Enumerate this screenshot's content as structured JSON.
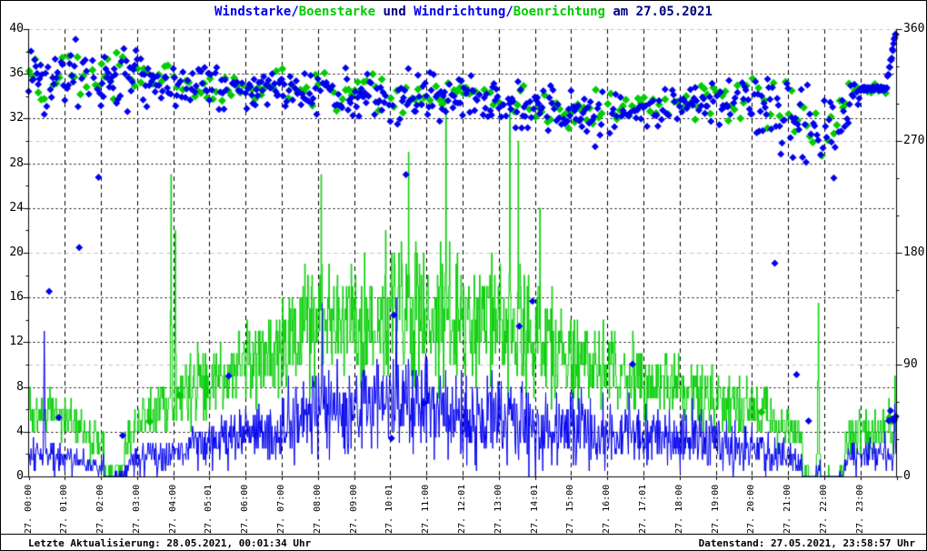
{
  "title": {
    "segments": [
      {
        "text": "Windstarke/",
        "color": "#0000ee"
      },
      {
        "text": "Boenstarke",
        "color": "#00cc00"
      },
      {
        "text": " und ",
        "color": "#000080"
      },
      {
        "text": "Windrichtung/",
        "color": "#0000ee"
      },
      {
        "text": "Boenrichtung",
        "color": "#00cc00"
      },
      {
        "text": " am 27.05.2021",
        "color": "#000080"
      }
    ]
  },
  "footer": {
    "left": "Letzte Aktualisierung: 28.05.2021, 00:01:34 Uhr",
    "right": "Datenstand: 27.05.2021, 23:58:57 Uhr"
  },
  "colors": {
    "wind_blue": "#0000ee",
    "gust_green": "#00cc00",
    "grid_gray": "#c0c0c0",
    "grid_black": "#000000",
    "axis_black": "#000000"
  },
  "axes": {
    "y_left": {
      "min": 0,
      "max": 40,
      "step": 4,
      "tick_labels": [
        "40",
        "36",
        "32",
        "28",
        "24",
        "20",
        "16",
        "12",
        "8",
        "4",
        "0"
      ]
    },
    "y_right": {
      "min": 0,
      "max": 360,
      "step": 90,
      "minor_step": 30,
      "tick_labels": [
        "360",
        "270",
        "180",
        "90",
        "0"
      ]
    },
    "x": {
      "labels": [
        "27. 00:00",
        "27. 01:00",
        "27. 02:00",
        "27. 03:00",
        "27. 04:00",
        "27. 05:01",
        "27. 06:00",
        "27. 07:00",
        "27. 08:00",
        "27. 09:00",
        "27. 10:01",
        "27. 11:00",
        "27. 12:01",
        "27. 13:00",
        "27. 14:01",
        "27. 15:00",
        "27. 16:00",
        "27. 17:01",
        "27. 18:00",
        "27. 19:00",
        "27. 20:00",
        "27. 21:00",
        "27. 22:00",
        "27. 23:00"
      ]
    }
  },
  "chart_data": {
    "type": "line+scatter",
    "title": "Windstarke/Boenstarke und Windrichtung/Boenrichtung am 27.05.2021",
    "x_axis": {
      "unit": "hour of 27.05.2021",
      "range": [
        0,
        24
      ],
      "gridline_every_hour": true
    },
    "y_left_axis": {
      "range": [
        0,
        40
      ],
      "tick_step": 4,
      "used_by": "wind and gust speed lines"
    },
    "y_right_axis": {
      "range": [
        0,
        360
      ],
      "tick_step": 90,
      "used_by": "wind and gust direction scatter (degrees)"
    },
    "legend_position": "title-colored",
    "grid": {
      "horizontal_black_dotted_at_left_values": [
        4,
        8,
        12,
        16,
        24,
        28,
        32,
        36
      ],
      "horizontal_gray_dashed_at_right_degrees": [
        90,
        180,
        270,
        360
      ],
      "vertical_black_dashed_every_hour": true
    },
    "series": [
      {
        "name": "Windstaerke",
        "type": "line",
        "axis": "left",
        "color": "#0000ee",
        "sampling": "per-minute estimate",
        "hourly_base": [
          2.0,
          1.8,
          0.8,
          1.5,
          2.5,
          3.2,
          3.8,
          4.5,
          6.0,
          6.0,
          6.5,
          6.5,
          5.5,
          5.0,
          4.5,
          4.5,
          4.0,
          4.0,
          3.5,
          3.0,
          2.5,
          1.6,
          0.5,
          2.0
        ],
        "hourly_amp": [
          1.6,
          1.4,
          0.9,
          1.4,
          2.0,
          2.4,
          2.8,
          3.4,
          4.4,
          4.4,
          5.0,
          5.0,
          4.6,
          4.6,
          4.0,
          3.6,
          3.4,
          3.2,
          3.0,
          2.6,
          2.2,
          1.6,
          0.7,
          1.7
        ],
        "spikes": [
          {
            "minute": 26,
            "value": 13
          },
          {
            "minute": 487,
            "value": 15.5
          },
          {
            "minute": 610,
            "value": 16
          },
          {
            "minute": 1437,
            "value": 6.5
          }
        ]
      },
      {
        "name": "Boenstaerke",
        "type": "step-line",
        "axis": "left",
        "color": "#00cc00",
        "sampling": "per-minute estimate",
        "hourly_base": [
          6.0,
          5.5,
          2.5,
          4.5,
          7.0,
          9.0,
          10.0,
          12.0,
          14.5,
          14.0,
          15.0,
          15.0,
          14.0,
          14.0,
          12.0,
          10.0,
          10.0,
          9.0,
          8.0,
          7.0,
          6.0,
          4.5,
          1.5,
          4.0
        ],
        "hourly_amp": [
          2.4,
          2.2,
          1.8,
          2.4,
          3.6,
          3.8,
          4.2,
          4.8,
          6.0,
          6.0,
          6.8,
          6.8,
          6.4,
          6.8,
          5.8,
          4.4,
          4.4,
          4.0,
          3.4,
          3.0,
          2.6,
          2.0,
          1.4,
          2.4
        ],
        "spikes": [
          {
            "minute": 236,
            "value": 27
          },
          {
            "minute": 243,
            "value": 22
          },
          {
            "minute": 485,
            "value": 27
          },
          {
            "minute": 630,
            "value": 29
          },
          {
            "minute": 692,
            "value": 33
          },
          {
            "minute": 798,
            "value": 33
          },
          {
            "minute": 812,
            "value": 30
          },
          {
            "minute": 848,
            "value": 24
          },
          {
            "minute": 1310,
            "value": 15.5
          },
          {
            "minute": 1437,
            "value": 9
          }
        ]
      },
      {
        "name": "Windrichtung",
        "type": "scatter-diamond",
        "axis": "right",
        "color": "#0000ee",
        "hourly_mean_deg": [
          322,
          318,
          322,
          320,
          315,
          312,
          310,
          311,
          309,
          307,
          305,
          307,
          304,
          300,
          296,
          290,
          291,
          295,
          300,
          304,
          300,
          292,
          272,
          312
        ],
        "hourly_spread_deg": [
          18,
          20,
          18,
          16,
          13,
          12,
          11,
          11,
          12,
          12,
          13,
          12,
          12,
          12,
          13,
          13,
          13,
          12,
          11,
          11,
          13,
          20,
          26,
          5
        ],
        "outlier_prob": [
          0.08,
          0.09,
          0.08,
          0.05,
          0.02,
          0.01,
          0.01,
          0.01,
          0.01,
          0.015,
          0.02,
          0.02,
          0.03,
          0.035,
          0.025,
          0.015,
          0.01,
          0.01,
          0.01,
          0.01,
          0.02,
          0.05,
          0.07,
          0.0
        ]
      },
      {
        "name": "Boenrichtung",
        "type": "scatter-diamond",
        "axis": "right",
        "color": "#00cc00",
        "hourly_mean_deg": [
          325,
          321,
          324,
          322,
          317,
          314,
          312,
          313,
          311,
          309,
          307,
          309,
          306,
          302,
          298,
          292,
          293,
          297,
          302,
          306,
          302,
          294,
          275,
          314
        ],
        "hourly_spread_deg": [
          16,
          18,
          16,
          14,
          12,
          11,
          10,
          10,
          11,
          11,
          12,
          11,
          11,
          11,
          12,
          12,
          12,
          11,
          10,
          10,
          12,
          18,
          22,
          6
        ],
        "outlier_prob": [
          0.04,
          0.05,
          0.04,
          0.03,
          0.01,
          0.01,
          0.01,
          0.01,
          0.01,
          0.01,
          0.01,
          0.01,
          0.02,
          0.02,
          0.01,
          0.01,
          0.005,
          0.005,
          0.005,
          0.005,
          0.01,
          0.03,
          0.04,
          0.0
        ]
      }
    ],
    "features": {
      "calm_periods_minutes": [
        [
          125,
          158
        ],
        [
          1284,
          1306
        ],
        [
          1314,
          1352
        ]
      ],
      "steady_direction_band": {
        "from_minute": 1380,
        "to_minute": 1424,
        "deg": 312
      },
      "end_direction_rise": {
        "from_minute": 1425,
        "to_minute": 1439,
        "deg_from": 320,
        "deg_to": 358
      },
      "end_low_direction_outliers_deg": [
        38,
        58
      ]
    }
  }
}
